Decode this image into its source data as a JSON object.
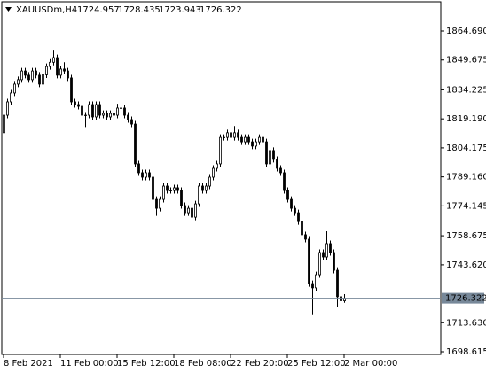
{
  "chart_data": {
    "type": "candlestick",
    "symbol": "XAUUSDm,H4",
    "categories": [
      "8 Feb 2021",
      null,
      null,
      null,
      null,
      null,
      null,
      null,
      null,
      null,
      null,
      null,
      null,
      null,
      null,
      null,
      "11 Feb 00:00",
      null,
      null,
      null,
      null,
      null,
      null,
      null,
      null,
      null,
      null,
      null,
      null,
      null,
      null,
      null,
      "15 Feb 12:00",
      null,
      null,
      null,
      null,
      null,
      null,
      null,
      null,
      null,
      null,
      null,
      null,
      null,
      null,
      null,
      "18 Feb 08:00",
      null,
      null,
      null,
      null,
      null,
      null,
      null,
      null,
      null,
      null,
      null,
      null,
      null,
      null,
      null,
      "22 Feb 20:00",
      null,
      null,
      null,
      null,
      null,
      null,
      null,
      null,
      null,
      null,
      null,
      null,
      null,
      null,
      null,
      "25 Feb 12:00",
      null,
      null,
      null,
      null,
      null,
      null,
      null,
      null,
      null,
      null,
      null,
      null,
      null,
      null,
      null,
      "2 Mar 00:00"
    ],
    "open": [
      1812.0,
      1821.1,
      1828.0,
      1832.6,
      1837.2,
      1839.5,
      1844.0,
      1841.8,
      1839.5,
      1844.0,
      1841.8,
      1837.2,
      1842.0,
      1846.3,
      1848.5,
      1850.9,
      1841.8,
      1845.0,
      1844.0,
      1840.4,
      1828.0,
      1826.6,
      1825.7,
      1821.1,
      1821.1,
      1826.6,
      1820.2,
      1826.6,
      1821.1,
      1822.0,
      1820.2,
      1822.0,
      1821.1,
      1824.8,
      1824.8,
      1821.1,
      1818.8,
      1816.5,
      1795.9,
      1791.3,
      1789.0,
      1791.3,
      1789.0,
      1777.5,
      1772.9,
      1777.5,
      1784.4,
      1782.1,
      1782.1,
      1783.5,
      1782.1,
      1774.3,
      1770.6,
      1772.9,
      1768.3,
      1775.2,
      1784.4,
      1782.1,
      1784.4,
      1789.0,
      1793.6,
      1795.9,
      1809.6,
      1809.6,
      1812.0,
      1809.6,
      1812.0,
      1809.6,
      1807.3,
      1809.6,
      1807.3,
      1805.1,
      1807.3,
      1809.6,
      1807.3,
      1795.9,
      1802.8,
      1798.2,
      1793.6,
      1791.3,
      1782.1,
      1777.5,
      1772.9,
      1770.6,
      1766.0,
      1759.2,
      1756.9,
      1733.9,
      1731.7,
      1738.5,
      1750.0,
      1747.7,
      1754.6,
      1750.0,
      1740.8,
      1727.1,
      1724.957
    ],
    "high": [
      1822.7,
      1829.6,
      1834.2,
      1838.8,
      1841.1,
      1845.6,
      1845.6,
      1843.4,
      1845.6,
      1845.6,
      1843.4,
      1843.6,
      1847.9,
      1850.1,
      1855.0,
      1852.5,
      1846.6,
      1848.5,
      1845.6,
      1842.0,
      1829.6,
      1828.2,
      1827.3,
      1822.7,
      1828.2,
      1828.2,
      1828.2,
      1828.2,
      1823.6,
      1823.6,
      1823.6,
      1823.6,
      1827.0,
      1826.4,
      1826.4,
      1822.7,
      1820.4,
      1818.1,
      1797.5,
      1792.9,
      1792.9,
      1792.9,
      1790.6,
      1779.1,
      1779.1,
      1786.0,
      1786.0,
      1783.7,
      1785.1,
      1785.1,
      1783.7,
      1775.9,
      1774.5,
      1774.5,
      1776.8,
      1786.0,
      1786.0,
      1786.0,
      1790.6,
      1795.2,
      1797.5,
      1811.2,
      1811.2,
      1813.6,
      1813.6,
      1815.5,
      1813.6,
      1811.2,
      1811.2,
      1811.2,
      1808.9,
      1808.9,
      1811.2,
      1811.2,
      1808.9,
      1804.4,
      1804.4,
      1799.8,
      1795.2,
      1792.9,
      1783.7,
      1779.1,
      1774.5,
      1772.2,
      1767.6,
      1760.8,
      1758.5,
      1735.5,
      1740.1,
      1751.6,
      1751.6,
      1761.0,
      1756.2,
      1751.6,
      1742.4,
      1728.7,
      1728.435
    ],
    "low": [
      1810.4,
      1819.5,
      1826.4,
      1831.0,
      1835.6,
      1837.9,
      1840.2,
      1837.9,
      1837.9,
      1840.2,
      1835.6,
      1835.6,
      1840.4,
      1844.7,
      1846.9,
      1840.2,
      1840.2,
      1842.4,
      1838.8,
      1826.4,
      1825.0,
      1824.1,
      1819.5,
      1815.0,
      1819.5,
      1818.6,
      1818.6,
      1819.5,
      1819.5,
      1818.6,
      1818.6,
      1819.5,
      1819.5,
      1823.2,
      1819.5,
      1817.2,
      1814.9,
      1794.3,
      1789.7,
      1787.4,
      1787.4,
      1787.4,
      1775.9,
      1769.0,
      1771.3,
      1775.9,
      1780.5,
      1780.5,
      1780.5,
      1780.5,
      1772.7,
      1769.0,
      1769.0,
      1764.0,
      1766.7,
      1773.6,
      1780.5,
      1780.5,
      1782.8,
      1787.4,
      1792.0,
      1794.3,
      1808.0,
      1808.0,
      1808.0,
      1808.0,
      1808.0,
      1805.7,
      1805.7,
      1805.7,
      1803.5,
      1803.5,
      1805.7,
      1805.7,
      1794.3,
      1794.3,
      1796.6,
      1792.0,
      1789.7,
      1780.5,
      1775.9,
      1771.3,
      1769.0,
      1764.4,
      1757.6,
      1755.3,
      1732.3,
      1718.0,
      1730.1,
      1736.9,
      1746.1,
      1746.1,
      1748.4,
      1739.2,
      1722.0,
      1721.5,
      1723.943
    ],
    "close": [
      1821.1,
      1828.0,
      1832.6,
      1837.2,
      1839.5,
      1844.0,
      1841.8,
      1839.5,
      1844.0,
      1841.8,
      1837.2,
      1842.0,
      1846.3,
      1848.5,
      1850.9,
      1841.8,
      1845.0,
      1844.0,
      1840.4,
      1828.0,
      1826.6,
      1825.7,
      1821.1,
      1821.1,
      1826.6,
      1820.2,
      1826.6,
      1821.1,
      1822.0,
      1820.2,
      1822.0,
      1821.1,
      1824.8,
      1824.8,
      1821.1,
      1818.8,
      1816.5,
      1795.9,
      1791.3,
      1789.0,
      1791.3,
      1789.0,
      1777.5,
      1772.9,
      1777.5,
      1784.4,
      1782.1,
      1782.1,
      1783.5,
      1782.1,
      1774.3,
      1770.6,
      1772.9,
      1768.3,
      1775.2,
      1784.4,
      1782.1,
      1784.4,
      1789.0,
      1793.6,
      1795.9,
      1809.6,
      1809.6,
      1812.0,
      1809.6,
      1812.0,
      1809.6,
      1807.3,
      1809.6,
      1807.3,
      1805.1,
      1807.3,
      1809.6,
      1807.3,
      1795.9,
      1802.8,
      1798.2,
      1793.6,
      1791.3,
      1782.1,
      1777.5,
      1772.9,
      1770.6,
      1766.0,
      1759.2,
      1756.9,
      1733.9,
      1731.7,
      1738.5,
      1750.0,
      1747.7,
      1754.6,
      1750.0,
      1740.8,
      1727.1,
      1725.0,
      1726.322
    ],
    "ylim": [
      1697.24,
      1879.83
    ],
    "yticks": [
      {
        "value": 1864.69,
        "label": "1864.690"
      },
      {
        "value": 1849.675,
        "label": "1849.675"
      },
      {
        "value": 1834.225,
        "label": "1834.225"
      },
      {
        "value": 1819.19,
        "label": "1819.190"
      },
      {
        "value": 1804.175,
        "label": "1804.175"
      },
      {
        "value": 1789.16,
        "label": "1789.160"
      },
      {
        "value": 1774.145,
        "label": "1774.145"
      },
      {
        "value": 1758.675,
        "label": "1758.675"
      },
      {
        "value": 1743.62,
        "label": "1743.620"
      },
      {
        "value": 1713.63,
        "label": "1713.630"
      },
      {
        "value": 1698.615,
        "label": "1698.615"
      }
    ],
    "bull_color": "#ffffff",
    "bear_color": "#000000",
    "wick_color": "#000000",
    "price_line_color": "#778899"
  }
}
